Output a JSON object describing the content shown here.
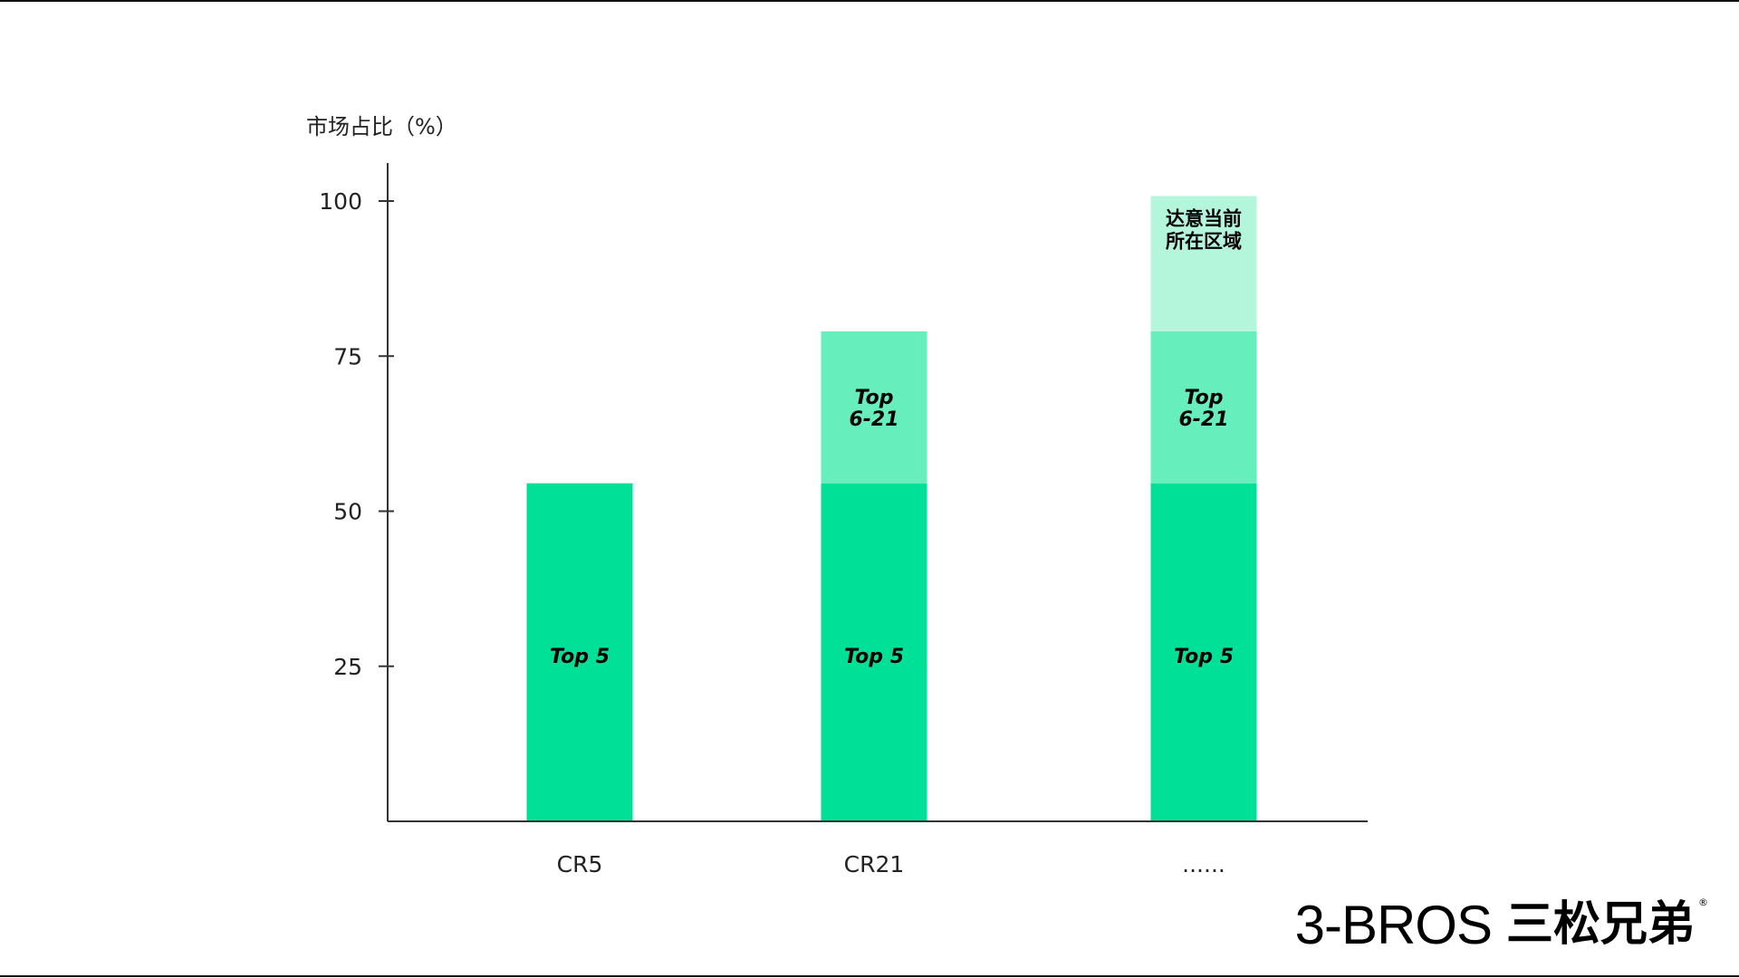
{
  "chart_data": {
    "type": "bar",
    "stacked": true,
    "title": "",
    "xlabel": "",
    "ylabel": "市场占比（%）",
    "ylim": [
      0,
      100
    ],
    "yticks": [
      25,
      50,
      75,
      100
    ],
    "grid": false,
    "categories": [
      "CR5",
      "CR21",
      "......"
    ],
    "series": [
      {
        "label": "Top 5",
        "values": [
          54.5,
          54.5,
          54.5
        ],
        "color": "#00e096",
        "italic": true
      },
      {
        "label": "Top\n6-21",
        "values": [
          0,
          24.5,
          24.5
        ],
        "color": "#67eebd",
        "italic": true
      },
      {
        "label": "达意当前\n所在区域",
        "values": [
          0,
          0,
          21.8
        ],
        "color": "#b4f6dc",
        "italic": false
      }
    ]
  },
  "logo": {
    "text_en": "3-BROS",
    "text_cn": "三松兄弟",
    "registered": "®"
  }
}
